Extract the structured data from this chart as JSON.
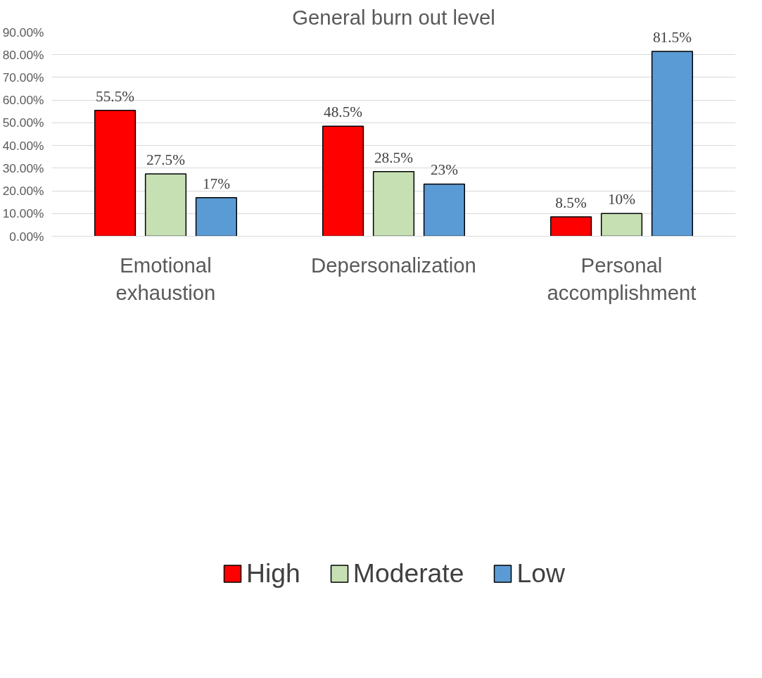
{
  "chart_data": {
    "type": "bar",
    "title": "General burn out level",
    "categories": [
      "Emotional\nexhaustion",
      "Depersonalization",
      "Personal\naccomplishment"
    ],
    "series": [
      {
        "name": "High",
        "color": "#ff0000",
        "values": [
          55.5,
          48.5,
          8.5
        ],
        "value_labels": [
          "55.5%",
          "48.5%",
          "8.5%"
        ]
      },
      {
        "name": "Moderate",
        "color": "#c6e0b4",
        "values": [
          27.5,
          28.5,
          10
        ],
        "value_labels": [
          "27.5%",
          "28.5%",
          "10%"
        ]
      },
      {
        "name": "Low",
        "color": "#5b9bd5",
        "values": [
          17,
          23,
          81.5
        ],
        "value_labels": [
          "17%",
          "23%",
          "81.5%"
        ]
      }
    ],
    "ylim": [
      0,
      90
    ],
    "yticks": [
      {
        "value": 0,
        "label": "0.00%"
      },
      {
        "value": 10,
        "label": "10.00%"
      },
      {
        "value": 20,
        "label": "20.00%"
      },
      {
        "value": 30,
        "label": "30.00%"
      },
      {
        "value": 40,
        "label": "40.00%"
      },
      {
        "value": 50,
        "label": "50.00%"
      },
      {
        "value": 60,
        "label": "60.00%"
      },
      {
        "value": 70,
        "label": "70.00%"
      },
      {
        "value": 80,
        "label": "80.00%"
      },
      {
        "value": 90,
        "label": "90.00%"
      }
    ],
    "grid": "y",
    "legend": "bottom"
  }
}
